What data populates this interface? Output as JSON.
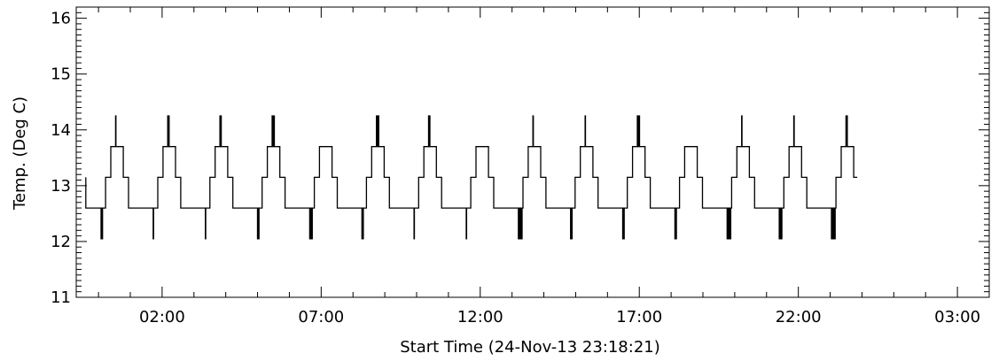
{
  "chart_data": {
    "type": "line",
    "title": "",
    "xlabel": "Start Time (24-Nov-13 23:18:21)",
    "ylabel": "Temp. (Deg C)",
    "ylim": [
      11,
      16.2
    ],
    "xlim_hours": [
      0,
      28.7
    ],
    "x_unit": "hours since 24-Nov-13 23:18:21",
    "x_tick_labels": [
      "02:00",
      "07:00",
      "12:00",
      "17:00",
      "22:00",
      "03:00"
    ],
    "x_tick_hours": [
      2.7,
      7.7,
      12.7,
      17.7,
      22.7,
      27.7
    ],
    "y_tick_labels": [
      "11",
      "12",
      "13",
      "14",
      "15",
      "16"
    ],
    "y_ticks": [
      11,
      12,
      13,
      14,
      15,
      16
    ],
    "temperature_levels_degC": [
      12.05,
      12.6,
      13.15,
      13.7,
      14.25
    ],
    "series": [
      {
        "cycle_period_hours": 1.64,
        "cycle_levels_degC": [
          12.6,
          12.6,
          13.15,
          13.7,
          13.7,
          13.15,
          12.6
        ],
        "cycle_fraction_breaks": [
          0.0,
          0.28,
          0.38,
          0.48,
          0.62,
          0.72,
          0.82
        ],
        "first_hour": 0.3,
        "last_hour": 24.55,
        "minimum_dip_degC": 12.05,
        "maximum_spike_degC": 14.25,
        "start_value_degC": 13.15,
        "end_value_degC": 13.15
      }
    ],
    "grid": false,
    "legend": "none"
  }
}
